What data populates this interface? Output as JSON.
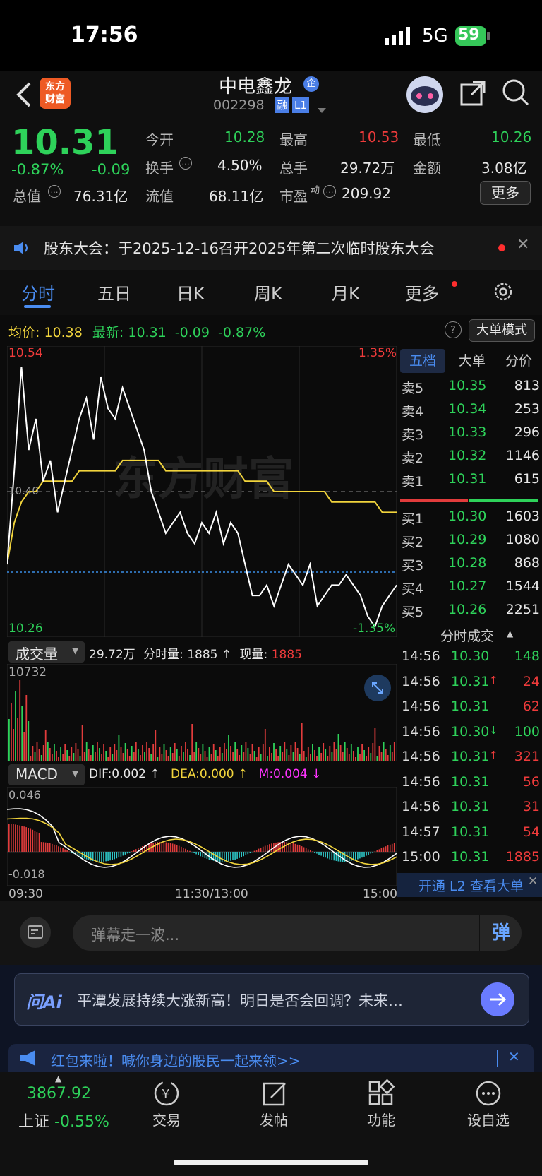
{
  "status": {
    "time": "17:56",
    "network": "5G",
    "battery": "59"
  },
  "header": {
    "stock_name": "中电鑫龙",
    "badge": "企",
    "code": "002298",
    "tag1": "融",
    "tag2": "L1",
    "logo_line1": "东方",
    "logo_line2": "财富"
  },
  "quote": {
    "price": "10.31",
    "change_pct": "-0.87%",
    "change": "-0.09",
    "open_label": "今开",
    "open": "10.28",
    "high_label": "最高",
    "high": "10.53",
    "low_label": "最低",
    "low": "10.26",
    "turnover_label": "换手",
    "turnover": "4.50%",
    "volume_label": "总手",
    "volume": "29.72万",
    "amount_label": "金额",
    "amount": "3.08亿",
    "mcap_label": "总值",
    "mcap": "76.31亿",
    "float_label": "流值",
    "float": "68.11亿",
    "pe_label": "市盈",
    "pe_sup": "动",
    "pe": "209.92",
    "more_button": "更多"
  },
  "notice": {
    "text": "股东大会：于2025-12-16召开2025年第二次临时股东大会"
  },
  "tabs": [
    "分时",
    "五日",
    "日K",
    "周K",
    "月K",
    "更多"
  ],
  "chart_info": {
    "avg_label": "均价:",
    "avg": "10.38",
    "latest_label": "最新:",
    "latest": "10.31",
    "chg": "-0.09",
    "pct": "-0.87%",
    "mode_button": "大单模式"
  },
  "chart_data": {
    "type": "line",
    "y_max": "10.54",
    "y_min": "10.26",
    "pct_max": "1.35%",
    "pct_min": "-1.35%",
    "ref_label": "10.40",
    "x_labels": [
      "09:30",
      "11:30/13:00",
      "15:00"
    ],
    "price": [
      10.33,
      10.42,
      10.52,
      10.44,
      10.47,
      10.41,
      10.43,
      10.38,
      10.41,
      10.44,
      10.47,
      10.49,
      10.45,
      10.51,
      10.48,
      10.47,
      10.5,
      10.48,
      10.46,
      10.44,
      10.4,
      10.38,
      10.36,
      10.37,
      10.38,
      10.36,
      10.35,
      10.37,
      10.36,
      10.38,
      10.35,
      10.37,
      10.36,
      10.33,
      10.3,
      10.3,
      10.31,
      10.29,
      10.31,
      10.33,
      10.32,
      10.31,
      10.33,
      10.29,
      10.3,
      10.31,
      10.31,
      10.32,
      10.31,
      10.3,
      10.28,
      10.27,
      10.29,
      10.3,
      10.31
    ],
    "avg": [
      10.33,
      10.37,
      10.39,
      10.4,
      10.4,
      10.41,
      10.41,
      10.41,
      10.41,
      10.41,
      10.42,
      10.42,
      10.42,
      10.42,
      10.42,
      10.42,
      10.43,
      10.43,
      10.43,
      10.43,
      10.43,
      10.43,
      10.42,
      10.42,
      10.42,
      10.42,
      10.42,
      10.42,
      10.42,
      10.42,
      10.42,
      10.42,
      10.42,
      10.41,
      10.41,
      10.41,
      10.41,
      10.4,
      10.4,
      10.4,
      10.4,
      10.4,
      10.4,
      10.4,
      10.4,
      10.39,
      10.39,
      10.39,
      10.39,
      10.39,
      10.39,
      10.39,
      10.38,
      10.38,
      10.38
    ],
    "volume_header": {
      "label": "成交量",
      "total": "29.72万",
      "minute_label": "分时量:",
      "minute": "1885",
      "now_label": "现量:",
      "now": "1885",
      "max": "10732"
    },
    "macd_header": {
      "label": "MACD",
      "dif": "DIF:0.002",
      "dea": "DEA:0.000",
      "m": "M:0.004",
      "max": "0.046",
      "min": "-0.018"
    }
  },
  "orderbook": {
    "tabs": [
      "五档",
      "大单",
      "分价"
    ],
    "asks": [
      {
        "l": "卖5",
        "p": "10.35",
        "v": "813"
      },
      {
        "l": "卖4",
        "p": "10.34",
        "v": "253"
      },
      {
        "l": "卖3",
        "p": "10.33",
        "v": "296"
      },
      {
        "l": "卖2",
        "p": "10.32",
        "v": "1146"
      },
      {
        "l": "卖1",
        "p": "10.31",
        "v": "615"
      }
    ],
    "bids": [
      {
        "l": "买1",
        "p": "10.30",
        "v": "1603"
      },
      {
        "l": "买2",
        "p": "10.29",
        "v": "1080"
      },
      {
        "l": "买3",
        "p": "10.28",
        "v": "868"
      },
      {
        "l": "买4",
        "p": "10.27",
        "v": "1544"
      },
      {
        "l": "买5",
        "p": "10.26",
        "v": "2251"
      }
    ],
    "ticks_title": "分时成交",
    "ticks": [
      {
        "t": "14:56",
        "p": "10.30",
        "v": "148",
        "pc": "g",
        "vc": "g",
        "a": ""
      },
      {
        "t": "14:56",
        "p": "10.31",
        "v": "24",
        "pc": "g",
        "vc": "r",
        "a": "↑"
      },
      {
        "t": "14:56",
        "p": "10.31",
        "v": "62",
        "pc": "g",
        "vc": "r",
        "a": ""
      },
      {
        "t": "14:56",
        "p": "10.30",
        "v": "100",
        "pc": "g",
        "vc": "g",
        "a": "↓"
      },
      {
        "t": "14:56",
        "p": "10.31",
        "v": "321",
        "pc": "g",
        "vc": "r",
        "a": "↑"
      },
      {
        "t": "14:56",
        "p": "10.31",
        "v": "56",
        "pc": "g",
        "vc": "r",
        "a": ""
      },
      {
        "t": "14:56",
        "p": "10.31",
        "v": "31",
        "pc": "g",
        "vc": "r",
        "a": ""
      },
      {
        "t": "14:57",
        "p": "10.31",
        "v": "54",
        "pc": "g",
        "vc": "r",
        "a": ""
      },
      {
        "t": "15:00",
        "p": "10.31",
        "v": "1885",
        "pc": "g",
        "vc": "r",
        "a": ""
      }
    ],
    "l2_banner": "开通 L2 查看大单"
  },
  "comment": {
    "placeholder": "弹幕走一波...",
    "danmu_btn": "弹"
  },
  "ai": {
    "logo": "问Ai",
    "text": "平潭发展持续大涨新高！明日是否会回调？未来…"
  },
  "promo": {
    "text": "红包来啦！喊你身边的股民一起来领>>"
  },
  "nav": {
    "index_value": "3867.92",
    "index_label": "上证",
    "index_pct": "-0.55%",
    "items": [
      "交易",
      "发帖",
      "功能",
      "设自选"
    ]
  }
}
